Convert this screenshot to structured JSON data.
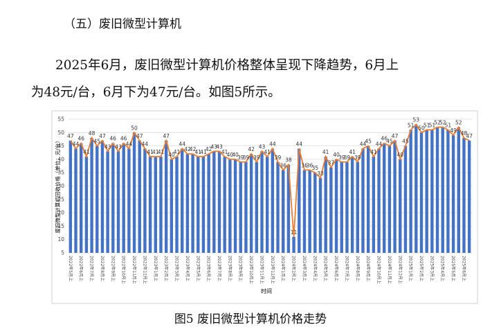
{
  "heading": "（五）废旧微型计算机",
  "paragraph_lines": [
    "2025年6月，废旧微型计算机价格整体呈现下降趋势，6月上",
    "为48元/台，6月下为47元/台。如图5所示。"
  ],
  "caption": "图5  废旧微型计算机价格走势",
  "chart_data": {
    "type": "bar_line",
    "ylabel": "废旧微型计算机回收价格（单位：元/台）",
    "xlabel": "时间",
    "categories": [
      "2022年5月上",
      null,
      "2022年6月上",
      null,
      "2022年7月上",
      null,
      "2022年8月上",
      null,
      "2022年9月上",
      null,
      "2022年10月上",
      null,
      "2022年11月上",
      null,
      "2022年12月上",
      null,
      "2023年1月上",
      null,
      "2023年2月上",
      null,
      "2023年3月上",
      null,
      "2023年4月上",
      null,
      "2023年5月上",
      null,
      "2023年6月上",
      null,
      "2023年7月上",
      null,
      "2023年8月上",
      null,
      "2023年9月上",
      null,
      "2023年10月上",
      null,
      "2023年11月上",
      null,
      "2023年12月上",
      null,
      "2024年1月上",
      null,
      "2024年2月上",
      null,
      "2024年3月上",
      null,
      "2024年4月上",
      null,
      "2024年5月上",
      null,
      "2024年6月上",
      null,
      "2024年7月上",
      null,
      "2024年8月上",
      null,
      "2024年9月上",
      null,
      "2024年10月上",
      null,
      "2024年11月上",
      null,
      "2024年12月上",
      null,
      "2025年1月上",
      null,
      "2025年2月上",
      null,
      "2025年3月上",
      null,
      "2025年4月上",
      null,
      "2025年5月上",
      null,
      "2025年6月上",
      null
    ],
    "values": [
      47,
      44,
      46,
      41,
      48,
      45,
      47,
      43,
      46,
      43,
      46,
      44,
      50,
      47,
      44,
      41,
      41,
      41,
      47,
      40,
      41,
      44,
      42,
      42,
      41,
      41,
      42,
      43,
      43,
      41,
      40,
      40,
      39,
      39,
      42,
      39,
      43,
      41,
      44,
      39,
      36,
      38,
      11,
      44,
      36,
      36,
      35,
      33,
      41,
      37,
      40,
      39,
      39,
      41,
      39,
      44,
      45,
      41,
      44,
      46,
      45,
      47,
      40,
      45,
      51,
      53,
      50,
      51,
      51,
      52,
      52,
      51,
      49,
      52,
      48,
      47
    ],
    "bar_color": "#4472c4",
    "line_color": "#ed7d31",
    "ylim": [
      5,
      55
    ],
    "yticks": [
      5,
      10,
      15,
      20,
      25,
      30,
      35,
      40,
      45,
      50,
      55
    ],
    "grid": true
  }
}
